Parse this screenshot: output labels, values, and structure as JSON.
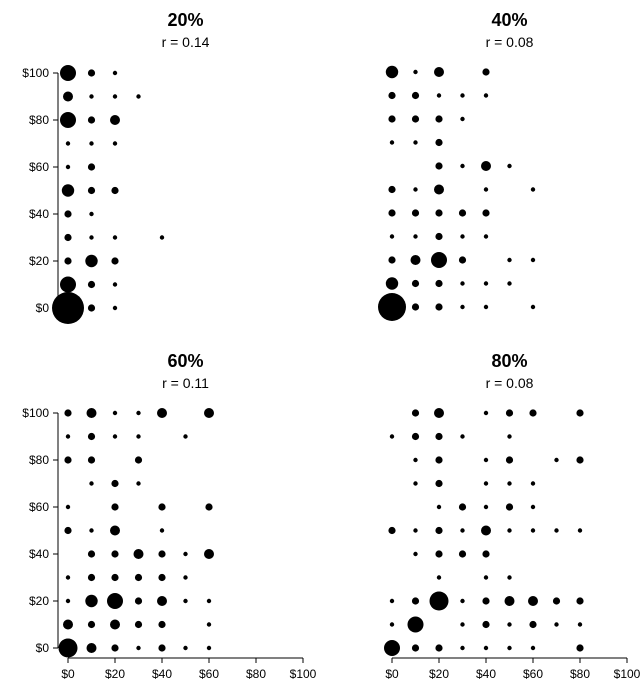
{
  "chart_data": [
    {
      "type": "scatter",
      "title": "20%",
      "subtitle": "r = 0.14",
      "x_axis_ticks": [],
      "y_axis_ticks": [
        "$0",
        "$20",
        "$40",
        "$60",
        "$80",
        "$100"
      ],
      "xlim": [
        0,
        100
      ],
      "ylim": [
        0,
        100
      ],
      "point_size": "count",
      "points": [
        {
          "x": 0,
          "y": 0,
          "size": 10
        },
        {
          "x": 10,
          "y": 0,
          "size": 2
        },
        {
          "x": 20,
          "y": 0,
          "size": 1
        },
        {
          "x": 0,
          "y": 10,
          "size": 5
        },
        {
          "x": 10,
          "y": 10,
          "size": 2
        },
        {
          "x": 20,
          "y": 10,
          "size": 1
        },
        {
          "x": 0,
          "y": 20,
          "size": 2
        },
        {
          "x": 10,
          "y": 20,
          "size": 4
        },
        {
          "x": 20,
          "y": 20,
          "size": 2
        },
        {
          "x": 0,
          "y": 30,
          "size": 2
        },
        {
          "x": 10,
          "y": 30,
          "size": 1
        },
        {
          "x": 20,
          "y": 30,
          "size": 1
        },
        {
          "x": 40,
          "y": 30,
          "size": 1
        },
        {
          "x": 0,
          "y": 40,
          "size": 2
        },
        {
          "x": 10,
          "y": 40,
          "size": 1
        },
        {
          "x": 0,
          "y": 50,
          "size": 4
        },
        {
          "x": 10,
          "y": 50,
          "size": 2
        },
        {
          "x": 20,
          "y": 50,
          "size": 2
        },
        {
          "x": 0,
          "y": 60,
          "size": 1
        },
        {
          "x": 10,
          "y": 60,
          "size": 2
        },
        {
          "x": 0,
          "y": 70,
          "size": 1
        },
        {
          "x": 10,
          "y": 70,
          "size": 1
        },
        {
          "x": 20,
          "y": 70,
          "size": 1
        },
        {
          "x": 0,
          "y": 80,
          "size": 5
        },
        {
          "x": 10,
          "y": 80,
          "size": 2
        },
        {
          "x": 20,
          "y": 80,
          "size": 3
        },
        {
          "x": 0,
          "y": 90,
          "size": 3
        },
        {
          "x": 10,
          "y": 90,
          "size": 1
        },
        {
          "x": 20,
          "y": 90,
          "size": 1
        },
        {
          "x": 30,
          "y": 90,
          "size": 1
        },
        {
          "x": 0,
          "y": 100,
          "size": 5
        },
        {
          "x": 10,
          "y": 100,
          "size": 2
        },
        {
          "x": 20,
          "y": 100,
          "size": 1
        }
      ]
    },
    {
      "type": "scatter",
      "title": "40%",
      "subtitle": "r = 0.08",
      "x_axis_ticks": [],
      "y_axis_ticks": [],
      "xlim": [
        0,
        100
      ],
      "ylim": [
        0,
        100
      ],
      "point_size": "count",
      "points": [
        {
          "x": 0,
          "y": 0,
          "size": 9
        },
        {
          "x": 10,
          "y": 0,
          "size": 2
        },
        {
          "x": 20,
          "y": 0,
          "size": 2
        },
        {
          "x": 30,
          "y": 0,
          "size": 1
        },
        {
          "x": 40,
          "y": 0,
          "size": 1
        },
        {
          "x": 60,
          "y": 0,
          "size": 1
        },
        {
          "x": 0,
          "y": 10,
          "size": 4
        },
        {
          "x": 10,
          "y": 10,
          "size": 2
        },
        {
          "x": 20,
          "y": 10,
          "size": 2
        },
        {
          "x": 30,
          "y": 10,
          "size": 1
        },
        {
          "x": 40,
          "y": 10,
          "size": 1
        },
        {
          "x": 50,
          "y": 10,
          "size": 1
        },
        {
          "x": 0,
          "y": 20,
          "size": 2
        },
        {
          "x": 10,
          "y": 20,
          "size": 3
        },
        {
          "x": 20,
          "y": 20,
          "size": 5
        },
        {
          "x": 30,
          "y": 20,
          "size": 2
        },
        {
          "x": 50,
          "y": 20,
          "size": 1
        },
        {
          "x": 60,
          "y": 20,
          "size": 1
        },
        {
          "x": 0,
          "y": 30,
          "size": 1
        },
        {
          "x": 10,
          "y": 30,
          "size": 1
        },
        {
          "x": 20,
          "y": 30,
          "size": 2
        },
        {
          "x": 30,
          "y": 30,
          "size": 1
        },
        {
          "x": 40,
          "y": 30,
          "size": 1
        },
        {
          "x": 0,
          "y": 40,
          "size": 2
        },
        {
          "x": 10,
          "y": 40,
          "size": 2
        },
        {
          "x": 20,
          "y": 40,
          "size": 2
        },
        {
          "x": 30,
          "y": 40,
          "size": 2
        },
        {
          "x": 40,
          "y": 40,
          "size": 2
        },
        {
          "x": 0,
          "y": 50,
          "size": 2
        },
        {
          "x": 10,
          "y": 50,
          "size": 1
        },
        {
          "x": 20,
          "y": 50,
          "size": 3
        },
        {
          "x": 40,
          "y": 50,
          "size": 1
        },
        {
          "x": 60,
          "y": 50,
          "size": 1
        },
        {
          "x": 20,
          "y": 60,
          "size": 2
        },
        {
          "x": 30,
          "y": 60,
          "size": 1
        },
        {
          "x": 40,
          "y": 60,
          "size": 3
        },
        {
          "x": 50,
          "y": 60,
          "size": 1
        },
        {
          "x": 0,
          "y": 70,
          "size": 1
        },
        {
          "x": 10,
          "y": 70,
          "size": 1
        },
        {
          "x": 20,
          "y": 70,
          "size": 2
        },
        {
          "x": 0,
          "y": 80,
          "size": 2
        },
        {
          "x": 10,
          "y": 80,
          "size": 2
        },
        {
          "x": 20,
          "y": 80,
          "size": 2
        },
        {
          "x": 30,
          "y": 80,
          "size": 1
        },
        {
          "x": 0,
          "y": 90,
          "size": 2
        },
        {
          "x": 10,
          "y": 90,
          "size": 2
        },
        {
          "x": 20,
          "y": 90,
          "size": 1
        },
        {
          "x": 30,
          "y": 90,
          "size": 1
        },
        {
          "x": 40,
          "y": 90,
          "size": 1
        },
        {
          "x": 0,
          "y": 100,
          "size": 4
        },
        {
          "x": 10,
          "y": 100,
          "size": 1
        },
        {
          "x": 20,
          "y": 100,
          "size": 3
        },
        {
          "x": 40,
          "y": 100,
          "size": 2
        }
      ]
    },
    {
      "type": "scatter",
      "title": "60%",
      "subtitle": "r = 0.11",
      "x_axis_ticks": [
        "$0",
        "$20",
        "$40",
        "$60",
        "$80",
        "$100"
      ],
      "y_axis_ticks": [
        "$0",
        "$20",
        "$40",
        "$60",
        "$80",
        "$100"
      ],
      "xlim": [
        0,
        100
      ],
      "ylim": [
        0,
        100
      ],
      "point_size": "count",
      "points": [
        {
          "x": 0,
          "y": 0,
          "size": 6
        },
        {
          "x": 10,
          "y": 0,
          "size": 3
        },
        {
          "x": 20,
          "y": 0,
          "size": 2
        },
        {
          "x": 30,
          "y": 0,
          "size": 1
        },
        {
          "x": 40,
          "y": 0,
          "size": 2
        },
        {
          "x": 50,
          "y": 0,
          "size": 1
        },
        {
          "x": 60,
          "y": 0,
          "size": 1
        },
        {
          "x": 0,
          "y": 10,
          "size": 3
        },
        {
          "x": 10,
          "y": 10,
          "size": 2
        },
        {
          "x": 20,
          "y": 10,
          "size": 3
        },
        {
          "x": 30,
          "y": 10,
          "size": 2
        },
        {
          "x": 40,
          "y": 10,
          "size": 2
        },
        {
          "x": 60,
          "y": 10,
          "size": 1
        },
        {
          "x": 0,
          "y": 20,
          "size": 1
        },
        {
          "x": 10,
          "y": 20,
          "size": 4
        },
        {
          "x": 20,
          "y": 20,
          "size": 5
        },
        {
          "x": 30,
          "y": 20,
          "size": 2
        },
        {
          "x": 40,
          "y": 20,
          "size": 3
        },
        {
          "x": 50,
          "y": 20,
          "size": 1
        },
        {
          "x": 60,
          "y": 20,
          "size": 1
        },
        {
          "x": 0,
          "y": 30,
          "size": 1
        },
        {
          "x": 10,
          "y": 30,
          "size": 2
        },
        {
          "x": 20,
          "y": 30,
          "size": 2
        },
        {
          "x": 30,
          "y": 30,
          "size": 2
        },
        {
          "x": 40,
          "y": 30,
          "size": 2
        },
        {
          "x": 50,
          "y": 30,
          "size": 1
        },
        {
          "x": 10,
          "y": 40,
          "size": 2
        },
        {
          "x": 20,
          "y": 40,
          "size": 2
        },
        {
          "x": 30,
          "y": 40,
          "size": 3
        },
        {
          "x": 40,
          "y": 40,
          "size": 2
        },
        {
          "x": 50,
          "y": 40,
          "size": 1
        },
        {
          "x": 60,
          "y": 40,
          "size": 3
        },
        {
          "x": 0,
          "y": 50,
          "size": 2
        },
        {
          "x": 10,
          "y": 50,
          "size": 1
        },
        {
          "x": 20,
          "y": 50,
          "size": 3
        },
        {
          "x": 40,
          "y": 50,
          "size": 1
        },
        {
          "x": 0,
          "y": 60,
          "size": 1
        },
        {
          "x": 20,
          "y": 60,
          "size": 2
        },
        {
          "x": 40,
          "y": 60,
          "size": 2
        },
        {
          "x": 60,
          "y": 60,
          "size": 2
        },
        {
          "x": 10,
          "y": 70,
          "size": 1
        },
        {
          "x": 20,
          "y": 70,
          "size": 2
        },
        {
          "x": 30,
          "y": 70,
          "size": 1
        },
        {
          "x": 0,
          "y": 80,
          "size": 2
        },
        {
          "x": 10,
          "y": 80,
          "size": 2
        },
        {
          "x": 30,
          "y": 80,
          "size": 2
        },
        {
          "x": 0,
          "y": 90,
          "size": 1
        },
        {
          "x": 10,
          "y": 90,
          "size": 2
        },
        {
          "x": 20,
          "y": 90,
          "size": 1
        },
        {
          "x": 30,
          "y": 90,
          "size": 1
        },
        {
          "x": 50,
          "y": 90,
          "size": 1
        },
        {
          "x": 0,
          "y": 100,
          "size": 2
        },
        {
          "x": 10,
          "y": 100,
          "size": 3
        },
        {
          "x": 20,
          "y": 100,
          "size": 1
        },
        {
          "x": 30,
          "y": 100,
          "size": 1
        },
        {
          "x": 40,
          "y": 100,
          "size": 3
        },
        {
          "x": 60,
          "y": 100,
          "size": 3
        }
      ]
    },
    {
      "type": "scatter",
      "title": "80%",
      "subtitle": "r = 0.08",
      "x_axis_ticks": [
        "$0",
        "$20",
        "$40",
        "$60",
        "$80",
        "$100"
      ],
      "y_axis_ticks": [],
      "xlim": [
        0,
        100
      ],
      "ylim": [
        0,
        100
      ],
      "point_size": "count",
      "points": [
        {
          "x": 0,
          "y": 0,
          "size": 5
        },
        {
          "x": 10,
          "y": 0,
          "size": 2
        },
        {
          "x": 20,
          "y": 0,
          "size": 2
        },
        {
          "x": 30,
          "y": 0,
          "size": 1
        },
        {
          "x": 40,
          "y": 0,
          "size": 1
        },
        {
          "x": 50,
          "y": 0,
          "size": 1
        },
        {
          "x": 60,
          "y": 0,
          "size": 1
        },
        {
          "x": 80,
          "y": 0,
          "size": 2
        },
        {
          "x": 0,
          "y": 10,
          "size": 1
        },
        {
          "x": 10,
          "y": 10,
          "size": 5
        },
        {
          "x": 30,
          "y": 10,
          "size": 1
        },
        {
          "x": 40,
          "y": 10,
          "size": 2
        },
        {
          "x": 50,
          "y": 10,
          "size": 1
        },
        {
          "x": 60,
          "y": 10,
          "size": 2
        },
        {
          "x": 70,
          "y": 10,
          "size": 1
        },
        {
          "x": 80,
          "y": 10,
          "size": 1
        },
        {
          "x": 0,
          "y": 20,
          "size": 1
        },
        {
          "x": 10,
          "y": 20,
          "size": 2
        },
        {
          "x": 20,
          "y": 20,
          "size": 6
        },
        {
          "x": 30,
          "y": 20,
          "size": 1
        },
        {
          "x": 40,
          "y": 20,
          "size": 2
        },
        {
          "x": 50,
          "y": 20,
          "size": 3
        },
        {
          "x": 60,
          "y": 20,
          "size": 3
        },
        {
          "x": 70,
          "y": 20,
          "size": 2
        },
        {
          "x": 80,
          "y": 20,
          "size": 2
        },
        {
          "x": 20,
          "y": 30,
          "size": 1
        },
        {
          "x": 40,
          "y": 30,
          "size": 1
        },
        {
          "x": 50,
          "y": 30,
          "size": 1
        },
        {
          "x": 10,
          "y": 40,
          "size": 1
        },
        {
          "x": 20,
          "y": 40,
          "size": 2
        },
        {
          "x": 30,
          "y": 40,
          "size": 2
        },
        {
          "x": 40,
          "y": 40,
          "size": 2
        },
        {
          "x": 0,
          "y": 50,
          "size": 2
        },
        {
          "x": 10,
          "y": 50,
          "size": 1
        },
        {
          "x": 20,
          "y": 50,
          "size": 2
        },
        {
          "x": 30,
          "y": 50,
          "size": 1
        },
        {
          "x": 40,
          "y": 50,
          "size": 3
        },
        {
          "x": 50,
          "y": 50,
          "size": 1
        },
        {
          "x": 60,
          "y": 50,
          "size": 1
        },
        {
          "x": 70,
          "y": 50,
          "size": 1
        },
        {
          "x": 80,
          "y": 50,
          "size": 1
        },
        {
          "x": 20,
          "y": 60,
          "size": 1
        },
        {
          "x": 30,
          "y": 60,
          "size": 2
        },
        {
          "x": 40,
          "y": 60,
          "size": 1
        },
        {
          "x": 50,
          "y": 60,
          "size": 2
        },
        {
          "x": 60,
          "y": 60,
          "size": 1
        },
        {
          "x": 10,
          "y": 70,
          "size": 1
        },
        {
          "x": 20,
          "y": 70,
          "size": 2
        },
        {
          "x": 40,
          "y": 70,
          "size": 1
        },
        {
          "x": 50,
          "y": 70,
          "size": 1
        },
        {
          "x": 60,
          "y": 70,
          "size": 1
        },
        {
          "x": 10,
          "y": 80,
          "size": 1
        },
        {
          "x": 20,
          "y": 80,
          "size": 2
        },
        {
          "x": 40,
          "y": 80,
          "size": 1
        },
        {
          "x": 50,
          "y": 80,
          "size": 2
        },
        {
          "x": 70,
          "y": 80,
          "size": 1
        },
        {
          "x": 80,
          "y": 80,
          "size": 2
        },
        {
          "x": 0,
          "y": 90,
          "size": 1
        },
        {
          "x": 10,
          "y": 90,
          "size": 2
        },
        {
          "x": 20,
          "y": 90,
          "size": 2
        },
        {
          "x": 30,
          "y": 90,
          "size": 1
        },
        {
          "x": 50,
          "y": 90,
          "size": 1
        },
        {
          "x": 10,
          "y": 100,
          "size": 2
        },
        {
          "x": 20,
          "y": 100,
          "size": 3
        },
        {
          "x": 40,
          "y": 100,
          "size": 1
        },
        {
          "x": 50,
          "y": 100,
          "size": 2
        },
        {
          "x": 60,
          "y": 100,
          "size": 2
        },
        {
          "x": 80,
          "y": 100,
          "size": 2
        }
      ]
    }
  ]
}
